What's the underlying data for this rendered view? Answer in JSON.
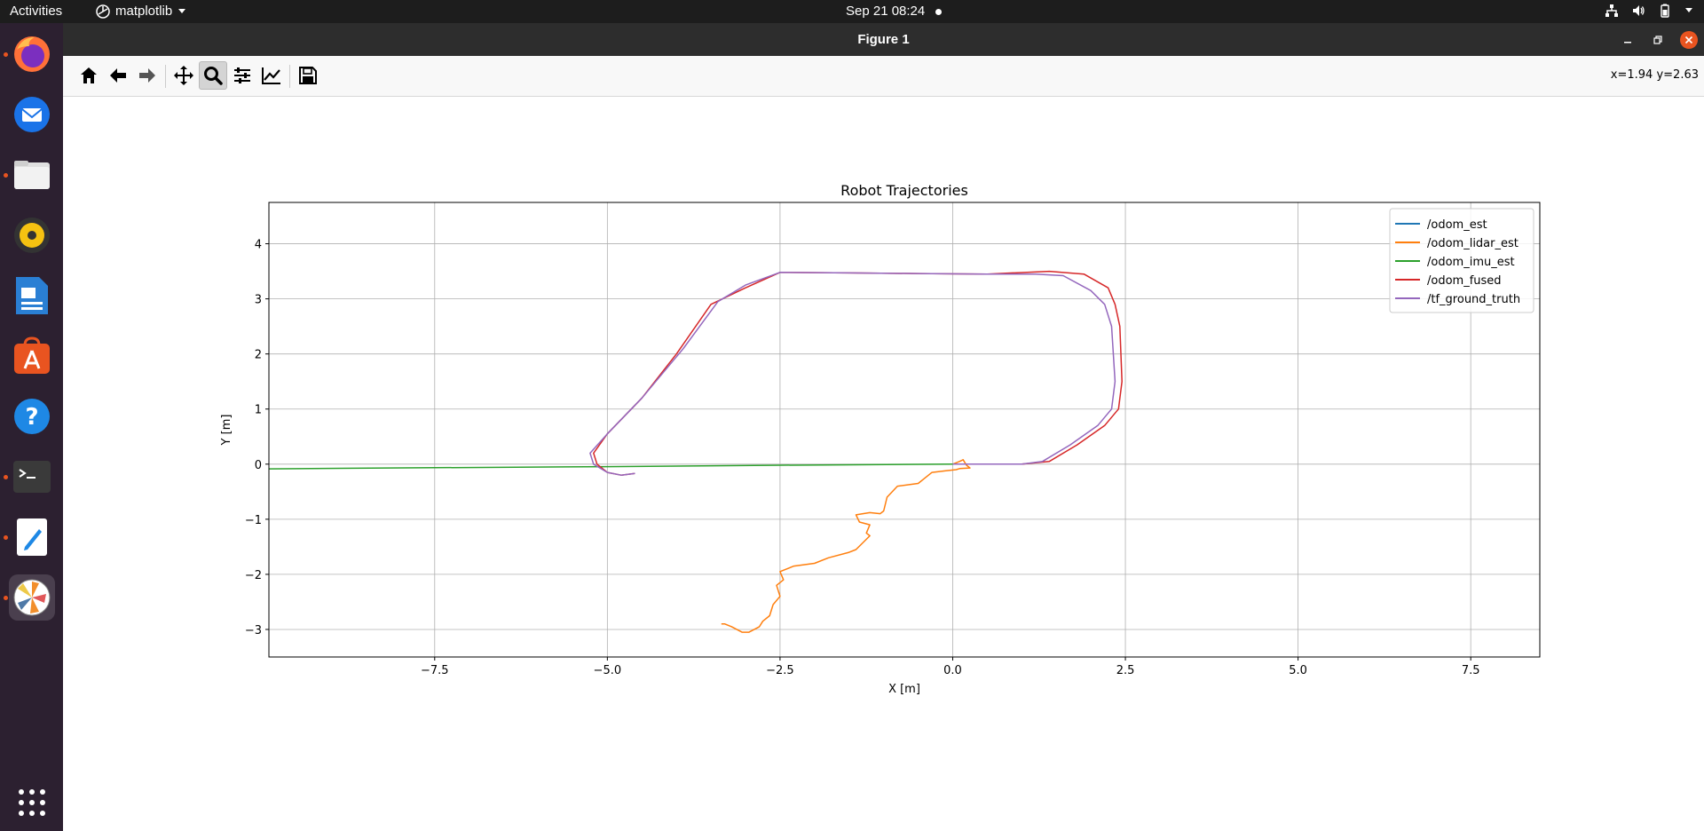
{
  "topbar": {
    "activities": "Activities",
    "app_name": "matplotlib",
    "clock": "Sep 21  08:24"
  },
  "dock": {
    "items": [
      {
        "name": "firefox-icon",
        "running": true
      },
      {
        "name": "thunderbird-icon",
        "running": false
      },
      {
        "name": "files-icon",
        "running": true
      },
      {
        "name": "rhythmbox-icon",
        "running": false
      },
      {
        "name": "libreoffice-writer-icon",
        "running": false
      },
      {
        "name": "app-center-icon",
        "running": false
      },
      {
        "name": "help-icon",
        "running": false
      },
      {
        "name": "terminal-icon",
        "running": true
      },
      {
        "name": "text-editor-icon",
        "running": true
      },
      {
        "name": "matplotlib-icon",
        "running": true,
        "active": true
      }
    ]
  },
  "window": {
    "title": "Figure 1",
    "coords": "x=1.94 y=2.63",
    "toolbar": [
      "home-icon",
      "back-icon",
      "forward-icon",
      "pan-icon",
      "zoom-icon",
      "configure-subplots-icon",
      "edit-axis-icon",
      "save-icon"
    ]
  },
  "chart_data": {
    "type": "line",
    "title": "Robot Trajectories",
    "xlabel": "X [m]",
    "ylabel": "Y [m]",
    "xlim": [
      -9.9,
      8.5
    ],
    "ylim": [
      -3.5,
      4.75
    ],
    "xticks": [
      -7.5,
      -5.0,
      -2.5,
      0.0,
      2.5,
      5.0,
      7.5
    ],
    "xtick_labels": [
      "−7.5",
      "−5.0",
      "−2.5",
      "0.0",
      "2.5",
      "5.0",
      "7.5"
    ],
    "yticks": [
      -3,
      -2,
      -1,
      0,
      1,
      2,
      3,
      4
    ],
    "ytick_labels": [
      "−3",
      "−2",
      "−1",
      "0",
      "1",
      "2",
      "3",
      "4"
    ],
    "grid": true,
    "legend_position": "top-right",
    "series": [
      {
        "name": "/odom_est",
        "color": "#1f77b4",
        "x": [
          0.0,
          0.0
        ],
        "y": [
          0.0,
          0.0
        ]
      },
      {
        "name": "/odom_lidar_est",
        "color": "#ff7f0e",
        "x": [
          0.0,
          0.1,
          0.15,
          0.2,
          0.25,
          0.1,
          0.05,
          -0.1,
          -0.3,
          -0.4,
          -0.5,
          -0.8,
          -0.95,
          -1.0,
          -1.05,
          -1.2,
          -1.4,
          -1.35,
          -1.2,
          -1.25,
          -1.2,
          -1.4,
          -1.5,
          -1.8,
          -2.0,
          -2.3,
          -2.5,
          -2.45,
          -2.55,
          -2.5,
          -2.6,
          -2.65,
          -2.75,
          -2.8,
          -2.95,
          -3.05,
          -3.2,
          -3.3,
          -3.35
        ],
        "y": [
          0.0,
          0.05,
          0.08,
          -0.02,
          -0.07,
          -0.08,
          -0.1,
          -0.12,
          -0.15,
          -0.25,
          -0.35,
          -0.4,
          -0.6,
          -0.85,
          -0.9,
          -0.88,
          -0.92,
          -1.05,
          -1.1,
          -1.25,
          -1.3,
          -1.55,
          -1.6,
          -1.7,
          -1.8,
          -1.85,
          -1.95,
          -2.1,
          -2.2,
          -2.4,
          -2.55,
          -2.75,
          -2.85,
          -2.95,
          -3.05,
          -3.05,
          -2.95,
          -2.9,
          -2.9
        ]
      },
      {
        "name": "/odom_imu_est",
        "color": "#2ca02c",
        "x": [
          0.0,
          -2.5,
          -5.0,
          -7.5,
          -9.9
        ],
        "y": [
          0.0,
          -0.02,
          -0.045,
          -0.065,
          -0.085
        ]
      },
      {
        "name": "/odom_fused",
        "color": "#d62728",
        "x": [
          0.0,
          0.5,
          1.0,
          1.4,
          1.8,
          2.2,
          2.4,
          2.45,
          2.42,
          2.35,
          2.25,
          1.9,
          1.4,
          0.5,
          -0.5,
          -1.5,
          -2.5,
          -3.0,
          -3.5,
          -4.0,
          -4.5,
          -5.0,
          -5.2,
          -5.15,
          -5.0,
          -4.8,
          -4.6
        ],
        "y": [
          0.0,
          0.0,
          0.0,
          0.05,
          0.35,
          0.7,
          1.0,
          1.5,
          2.5,
          2.9,
          3.2,
          3.45,
          3.5,
          3.45,
          3.46,
          3.47,
          3.48,
          3.2,
          2.9,
          2.0,
          1.2,
          0.55,
          0.2,
          0.0,
          -0.15,
          -0.2,
          -0.17
        ]
      },
      {
        "name": "/tf_ground_truth",
        "color": "#9467bd",
        "x": [
          0.0,
          0.5,
          1.0,
          1.3,
          1.7,
          2.1,
          2.3,
          2.35,
          2.3,
          2.2,
          2.0,
          1.6,
          1.2,
          0.5,
          -0.5,
          -1.5,
          -2.5,
          -3.0,
          -3.4,
          -3.9,
          -4.5,
          -5.0,
          -5.25,
          -5.2,
          -5.0,
          -4.8,
          -4.6
        ],
        "y": [
          0.0,
          0.0,
          0.0,
          0.05,
          0.35,
          0.7,
          1.0,
          1.5,
          2.5,
          2.9,
          3.15,
          3.42,
          3.45,
          3.45,
          3.46,
          3.47,
          3.48,
          3.25,
          2.95,
          2.1,
          1.2,
          0.55,
          0.2,
          0.0,
          -0.15,
          -0.2,
          -0.17
        ]
      }
    ]
  }
}
